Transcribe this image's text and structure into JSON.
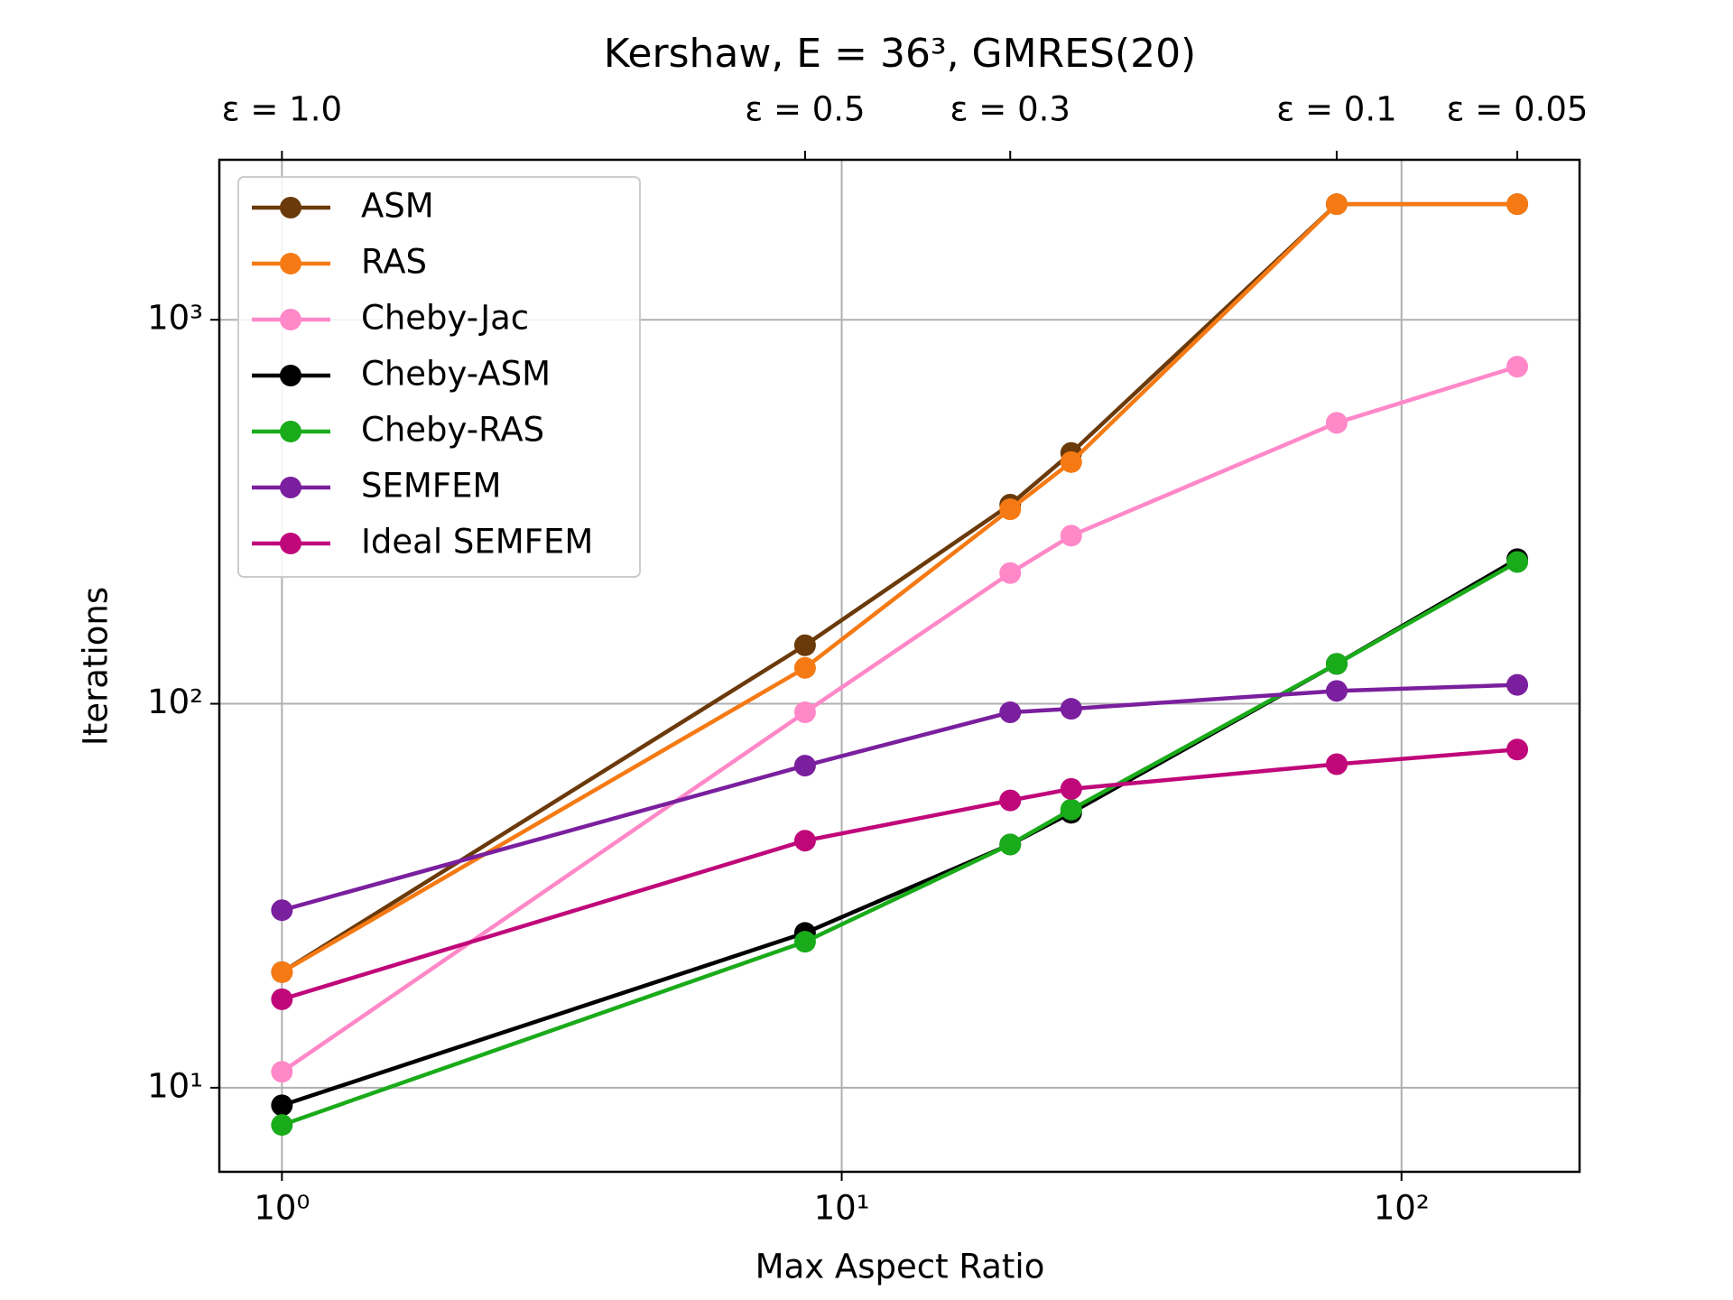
{
  "chart_data": {
    "type": "line",
    "title": "Kershaw, E = 36³, GMRES(20)",
    "xlabel": "Max Aspect Ratio",
    "ylabel": "Iterations",
    "x": [
      1,
      8.6,
      20,
      25.7,
      76.6,
      161
    ],
    "xlim": [
      0.773,
      208
    ],
    "ylim": [
      6.04,
      2610
    ],
    "xscale": "log",
    "yscale": "log",
    "grid": true,
    "legend": "upper left",
    "xticks": [
      {
        "value": 1,
        "label": "10⁰"
      },
      {
        "value": 10,
        "label": "10¹"
      },
      {
        "value": 100,
        "label": "10²"
      }
    ],
    "yticks": [
      {
        "value": 10,
        "label": "10¹"
      },
      {
        "value": 100,
        "label": "10²"
      },
      {
        "value": 1000,
        "label": "10³"
      }
    ],
    "x2ticks": [
      {
        "value": 1,
        "label": "ε = 1.0"
      },
      {
        "value": 8.6,
        "label": "ε = 0.5"
      },
      {
        "value": 20,
        "label": "ε = 0.3"
      },
      {
        "value": 76.6,
        "label": "ε = 0.1"
      },
      {
        "value": 161,
        "label": "ε = 0.05"
      }
    ],
    "series": [
      {
        "name": "ASM",
        "color": "#6b3a0a",
        "values": [
          20,
          142,
          330,
          450,
          2000,
          2000
        ]
      },
      {
        "name": "RAS",
        "color": "#f57a14",
        "values": [
          20,
          124,
          321,
          426,
          2000,
          2000
        ]
      },
      {
        "name": "Cheby-Jac",
        "color": "#ff88c8",
        "values": [
          11,
          95,
          219,
          274,
          539,
          755
        ]
      },
      {
        "name": "Cheby-ASM",
        "color": "#000000",
        "values": [
          9,
          25.3,
          43,
          52,
          127,
          238
        ]
      },
      {
        "name": "Cheby-RAS",
        "color": "#1aab1a",
        "values": [
          8,
          24,
          43,
          53,
          127,
          234
        ]
      },
      {
        "name": "SEMFEM",
        "color": "#7a1f9e",
        "values": [
          29,
          69,
          95,
          97,
          108,
          112
        ]
      },
      {
        "name": "Ideal SEMFEM",
        "color": "#c0077a",
        "values": [
          17,
          44,
          56,
          60,
          69.6,
          76
        ]
      }
    ]
  }
}
